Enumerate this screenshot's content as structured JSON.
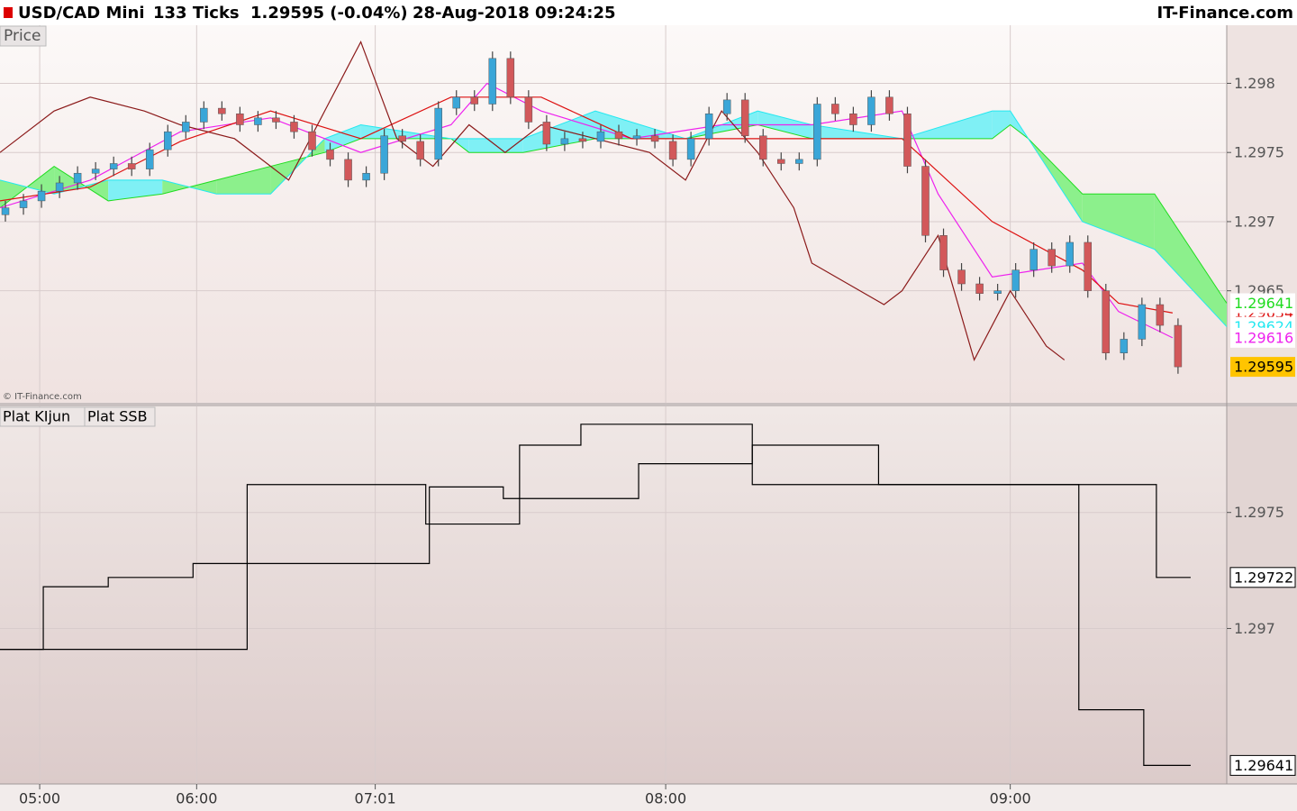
{
  "header": {
    "symbol": "USD/CAD Mini",
    "period": "133 Ticks",
    "quote": "1.29595 (-0.04%)",
    "datetime": "28-Aug-2018 09:24:25",
    "brand": "IT-Finance.com",
    "watermark": "© IT-Finance.com"
  },
  "chart_data": [
    {
      "type": "candlestick",
      "title": "Price",
      "x": [
        0,
        1,
        2,
        3,
        4,
        5,
        6,
        7,
        8,
        9,
        10,
        11,
        12,
        13,
        14,
        15,
        16,
        17,
        18,
        19,
        20,
        21,
        22,
        23,
        24,
        25,
        26,
        27,
        28,
        29,
        30,
        31,
        32,
        33,
        34,
        35,
        36,
        37,
        38,
        39,
        40,
        41,
        42,
        43,
        44,
        45,
        46,
        47,
        48,
        49,
        50,
        51,
        52,
        53,
        54,
        55,
        56,
        57,
        58,
        59,
        60,
        61,
        62,
        63,
        64,
        65
      ],
      "open": [
        1.29705,
        1.2971,
        1.29715,
        1.29722,
        1.29728,
        1.29735,
        1.29738,
        1.29742,
        1.29738,
        1.29752,
        1.29765,
        1.29772,
        1.29782,
        1.29778,
        1.2977,
        1.29775,
        1.29772,
        1.29765,
        1.29752,
        1.29745,
        1.2973,
        1.29735,
        1.29762,
        1.29758,
        1.29745,
        1.29782,
        1.2979,
        1.29785,
        1.29818,
        1.2979,
        1.29772,
        1.29756,
        1.2976,
        1.29758,
        1.29765,
        1.2976,
        1.29762,
        1.29758,
        1.29745,
        1.2976,
        1.29778,
        1.29788,
        1.29762,
        1.29745,
        1.29742,
        1.29745,
        1.29785,
        1.29778,
        1.2977,
        1.2979,
        1.29778,
        1.2974,
        1.2969,
        1.29665,
        1.29655,
        1.29648,
        1.2965,
        1.29665,
        1.2968,
        1.29668,
        1.29685,
        1.2965,
        1.29605,
        1.29615,
        1.2964,
        1.29625
      ],
      "high": [
        1.29715,
        1.2972,
        1.29727,
        1.29733,
        1.2974,
        1.29743,
        1.29747,
        1.29747,
        1.29757,
        1.2977,
        1.29777,
        1.29787,
        1.29787,
        1.29783,
        1.2978,
        1.2978,
        1.29777,
        1.2977,
        1.29757,
        1.2975,
        1.2974,
        1.29767,
        1.29767,
        1.29763,
        1.29787,
        1.29795,
        1.29795,
        1.29823,
        1.29823,
        1.29795,
        1.29777,
        1.29765,
        1.29765,
        1.2977,
        1.2977,
        1.29767,
        1.29767,
        1.29763,
        1.29765,
        1.29783,
        1.29793,
        1.29793,
        1.29767,
        1.2975,
        1.2975,
        1.2979,
        1.2979,
        1.29783,
        1.29795,
        1.29795,
        1.29783,
        1.29745,
        1.29695,
        1.2967,
        1.2966,
        1.29655,
        1.2967,
        1.29685,
        1.29685,
        1.2969,
        1.2969,
        1.29655,
        1.2962,
        1.29645,
        1.29645,
        1.2963
      ],
      "low": [
        1.297,
        1.29705,
        1.2971,
        1.29717,
        1.29723,
        1.2973,
        1.29733,
        1.29733,
        1.29733,
        1.29747,
        1.2976,
        1.29767,
        1.29773,
        1.29765,
        1.29765,
        1.29767,
        1.2976,
        1.29747,
        1.2974,
        1.29725,
        1.29725,
        1.2973,
        1.29753,
        1.2974,
        1.2974,
        1.29777,
        1.2978,
        1.2978,
        1.29785,
        1.29767,
        1.29751,
        1.29751,
        1.29753,
        1.29753,
        1.29755,
        1.29755,
        1.29753,
        1.2974,
        1.2974,
        1.29755,
        1.29773,
        1.29757,
        1.2974,
        1.29737,
        1.29737,
        1.2974,
        1.29773,
        1.29765,
        1.29765,
        1.29773,
        1.29735,
        1.29685,
        1.2966,
        1.2965,
        1.29643,
        1.29643,
        1.29645,
        1.2966,
        1.29663,
        1.29663,
        1.29645,
        1.296,
        1.296,
        1.2961,
        1.2962,
        1.2959
      ],
      "close": [
        1.2971,
        1.29715,
        1.29722,
        1.29728,
        1.29735,
        1.29738,
        1.29742,
        1.29738,
        1.29752,
        1.29765,
        1.29772,
        1.29782,
        1.29778,
        1.2977,
        1.29775,
        1.29772,
        1.29765,
        1.29752,
        1.29745,
        1.2973,
        1.29735,
        1.29762,
        1.29758,
        1.29745,
        1.29782,
        1.2979,
        1.29785,
        1.29818,
        1.2979,
        1.29772,
        1.29756,
        1.2976,
        1.29758,
        1.29765,
        1.2976,
        1.29762,
        1.29758,
        1.29745,
        1.2976,
        1.29778,
        1.29788,
        1.29762,
        1.29745,
        1.29742,
        1.29745,
        1.29785,
        1.29778,
        1.2977,
        1.2979,
        1.29778,
        1.2974,
        1.2969,
        1.29665,
        1.29655,
        1.29648,
        1.2965,
        1.29665,
        1.2968,
        1.29668,
        1.29685,
        1.2965,
        1.29605,
        1.29615,
        1.2964,
        1.29625,
        1.29595
      ],
      "up_color": "#3aa6d8",
      "down_color": "#d2585a",
      "last_color": "#ffc400",
      "lines": [
        {
          "color": "#ee22ee",
          "x": [
            0,
            5,
            10,
            15,
            20,
            25,
            27,
            30,
            35,
            40,
            45,
            50,
            52,
            55,
            60,
            62,
            65
          ],
          "values": [
            1.2971,
            1.2973,
            1.29765,
            1.29775,
            1.2975,
            1.2977,
            1.298,
            1.2978,
            1.2976,
            1.2977,
            1.2977,
            1.2978,
            1.2972,
            1.2966,
            1.2967,
            1.29635,
            1.29616
          ]
        },
        {
          "color": "#dd1111",
          "x": [
            0,
            5,
            10,
            15,
            20,
            25,
            30,
            35,
            40,
            45,
            50,
            55,
            60,
            62,
            65
          ],
          "values": [
            1.29715,
            1.29725,
            1.29758,
            1.2978,
            1.2976,
            1.2979,
            1.2979,
            1.2976,
            1.2976,
            1.2976,
            1.2976,
            1.297,
            1.29665,
            1.29641,
            1.29634
          ]
        },
        {
          "color": "#8b1a1a",
          "x": [
            0,
            3,
            5,
            8,
            10,
            13,
            16,
            18,
            20,
            22,
            24,
            26,
            28,
            30,
            33,
            36,
            38,
            40,
            42,
            44,
            45,
            47,
            49,
            50,
            52,
            54,
            56,
            58,
            59
          ],
          "values": [
            1.2975,
            1.2978,
            1.2979,
            1.2978,
            1.2977,
            1.2976,
            1.2973,
            1.2978,
            1.2983,
            1.2976,
            1.2974,
            1.2977,
            1.2975,
            1.2977,
            1.2976,
            1.2975,
            1.2973,
            1.2978,
            1.2975,
            1.2971,
            1.2967,
            1.29655,
            1.2964,
            1.2965,
            1.2969,
            1.296,
            1.2965,
            1.2961,
            1.296
          ]
        }
      ],
      "cloud": {
        "x": [
          0,
          3,
          6,
          9,
          12,
          15,
          18,
          20,
          25,
          26,
          29,
          33,
          38,
          42,
          45,
          50,
          55,
          56,
          57,
          60,
          64,
          68
        ],
        "span_a": [
          1.2971,
          1.2974,
          1.29715,
          1.2972,
          1.2973,
          1.2974,
          1.2975,
          1.2976,
          1.2976,
          1.2975,
          1.2975,
          1.2976,
          1.2976,
          1.2977,
          1.2976,
          1.2976,
          1.2976,
          1.2977,
          1.2976,
          1.2972,
          1.2972,
          1.29641
        ],
        "span_b": [
          1.2973,
          1.2972,
          1.2973,
          1.2973,
          1.2972,
          1.2972,
          1.2976,
          1.2977,
          1.2976,
          1.2976,
          1.2976,
          1.2978,
          1.2976,
          1.2978,
          1.2977,
          1.2976,
          1.2978,
          1.2978,
          1.2976,
          1.297,
          1.2968,
          1.29624
        ],
        "a_color": "#1fdc1f",
        "b_color": "#22e8f0",
        "a_above_fill": "#8cf08c",
        "b_above_fill": "#7ff0f5"
      },
      "xlim": [
        0,
        68
      ],
      "ylim": [
        1.29569,
        1.29842
      ],
      "yticks": [
        1.2965,
        1.297,
        1.2975,
        1.298
      ],
      "xticks": [
        {
          "value": 2.2,
          "label": "05:00"
        },
        {
          "value": 10.9,
          "label": "06:00"
        },
        {
          "value": 20.8,
          "label": "07:01"
        },
        {
          "value": 36.9,
          "label": "08:00"
        },
        {
          "value": 56,
          "label": "09:00"
        }
      ],
      "grid": true
    },
    {
      "type": "step",
      "xlim": [
        0,
        68
      ],
      "ylim": [
        1.29633,
        1.297957
      ],
      "yticks": [
        1.297,
        1.2975
      ],
      "series": [
        {
          "name": "Plat KIjun",
          "color": "#000000",
          "x": [
            0,
            2.4,
            6,
            10.7,
            23.8,
            27.9,
            35.4,
            41.7,
            48.7,
            64.1,
            66
          ],
          "values": [
            1.29691,
            1.29718,
            1.29722,
            1.29728,
            1.29761,
            1.29756,
            1.29771,
            1.29779,
            1.29762,
            1.29722,
            1.29722
          ]
        },
        {
          "name": "Plat SSB",
          "color": "#000000",
          "x": [
            0,
            13.7,
            23.6,
            28.8,
            32.2,
            41.7,
            59.8,
            63.4,
            66
          ],
          "values": [
            1.29691,
            1.29762,
            1.29745,
            1.29779,
            1.29788,
            1.29762,
            1.29665,
            1.29641,
            1.29641
          ]
        }
      ],
      "grid": true
    }
  ]
}
